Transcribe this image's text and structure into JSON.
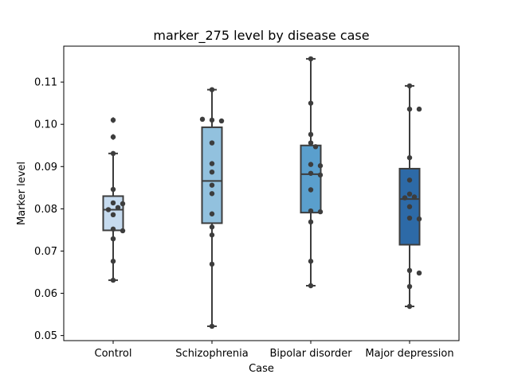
{
  "chart_data": {
    "type": "box",
    "title": "marker_275 level by disease case",
    "xlabel": "Case",
    "ylabel": "Marker level",
    "ylim": [
      0.0488,
      0.1185
    ],
    "yticks": [
      0.05,
      0.06,
      0.07,
      0.08,
      0.09,
      0.1,
      0.11
    ],
    "ytick_labels": [
      "0.05",
      "0.06",
      "0.07",
      "0.08",
      "0.09",
      "0.10",
      "0.11"
    ],
    "categories": [
      "Control",
      "Schizophrenia",
      "Bipolar disorder",
      "Major depression"
    ],
    "colors": [
      "#c6dbef",
      "#92c1de",
      "#5a9fcd",
      "#2d6aa7"
    ],
    "boxes": [
      {
        "q1": 0.0749,
        "median": 0.0798,
        "q3": 0.083,
        "whisker_low": 0.0631,
        "whisker_high": 0.0931,
        "outliers": [
          0.097,
          0.101
        ]
      },
      {
        "q1": 0.0766,
        "median": 0.0866,
        "q3": 0.0993,
        "whisker_low": 0.0522,
        "whisker_high": 0.1082,
        "outliers": []
      },
      {
        "q1": 0.0791,
        "median": 0.0882,
        "q3": 0.095,
        "whisker_low": 0.0618,
        "whisker_high": 0.1155,
        "outliers": []
      },
      {
        "q1": 0.0715,
        "median": 0.0823,
        "q3": 0.0895,
        "whisker_low": 0.0569,
        "whisker_high": 0.1091,
        "outliers": []
      }
    ],
    "points": [
      [
        0.101,
        0.097,
        0.0931,
        0.0846,
        0.0814,
        0.0812,
        0.0803,
        0.0798,
        0.0786,
        0.0752,
        0.0748,
        0.0729,
        0.0676,
        0.0631
      ],
      [
        0.1082,
        0.101,
        0.1008,
        0.1012,
        0.0956,
        0.0907,
        0.0887,
        0.0856,
        0.0836,
        0.0788,
        0.0757,
        0.0738,
        0.0669,
        0.0522
      ],
      [
        0.1155,
        0.105,
        0.0976,
        0.0956,
        0.0947,
        0.0905,
        0.0902,
        0.0884,
        0.088,
        0.0845,
        0.0795,
        0.0793,
        0.0769,
        0.0676,
        0.0618
      ],
      [
        0.1091,
        0.1036,
        0.1036,
        0.0921,
        0.0868,
        0.0835,
        0.0828,
        0.0826,
        0.0805,
        0.0778,
        0.0776,
        0.0654,
        0.0648,
        0.0616,
        0.0569
      ]
    ],
    "grid": false,
    "legend": "none"
  }
}
